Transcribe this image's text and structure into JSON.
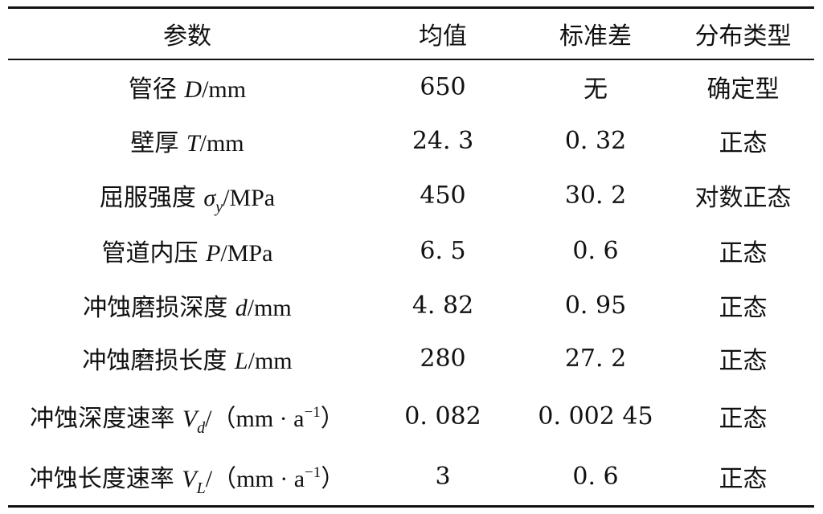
{
  "table": {
    "headers": [
      "参数",
      "均值",
      "标准差",
      "分布类型"
    ],
    "rows": [
      {
        "label": "管径",
        "symbol": "D",
        "unit": "/mm",
        "mean": "650",
        "std": "无",
        "dist": "确定型"
      },
      {
        "label": "壁厚",
        "symbol": "T",
        "unit": "/mm",
        "mean": "24. 3",
        "std": "0. 32",
        "dist": "正态"
      },
      {
        "label": "屈服强度",
        "symbol": "σ",
        "sub": "y",
        "unit": "/MPa",
        "mean": "450",
        "std": "30. 2",
        "dist": "对数正态"
      },
      {
        "label": "管道内压",
        "symbol": "P",
        "unit": "/MPa",
        "mean": "6. 5",
        "std": "0. 6",
        "dist": "正态"
      },
      {
        "label": "冲蚀磨损深度",
        "symbol": "d",
        "unit": "/mm",
        "mean": "4. 82",
        "std": "0. 95",
        "dist": "正态"
      },
      {
        "label": "冲蚀磨损长度",
        "symbol": "L",
        "unit": "/mm",
        "mean": "280",
        "std": "27. 2",
        "dist": "正态"
      },
      {
        "label": "冲蚀深度速率",
        "symbol": "V",
        "sub": "d",
        "unit_pre": "/（mm · a",
        "sup": "−1",
        "unit_post": "）",
        "mean": "0. 082",
        "std": "0. 002 45",
        "dist": "正态"
      },
      {
        "label": "冲蚀长度速率",
        "symbol": "V",
        "sub": "L",
        "unit_pre": "/（mm · a",
        "sup": "−1",
        "unit_post": "）",
        "mean": "3",
        "std": "0. 6",
        "dist": "正态"
      }
    ]
  }
}
